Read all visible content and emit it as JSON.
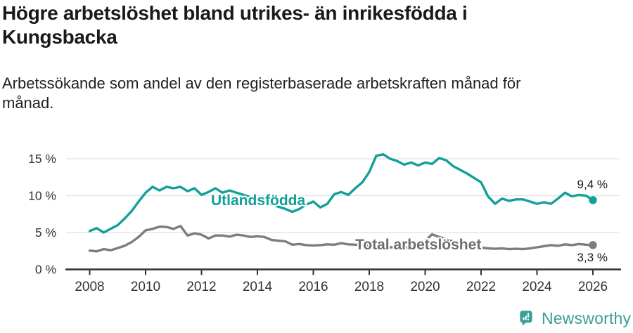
{
  "page": {
    "title": "Högre arbetslöshet bland utrikes- än inrikesfödda i Kungsbacka",
    "title_lines": [
      "Högre arbetslöshet bland utrikes- än inrikesfödda i",
      "Kungsbacka"
    ],
    "subtitle": "Arbetssökande som andel av den registerbaserade arbetskraften månad för månad.",
    "subtitle_lines": [
      "Arbetssökande som andel av den registerbaserade arbetskraften månad för",
      "månad."
    ]
  },
  "chart_data": {
    "type": "line",
    "title": "Högre arbetslöshet bland utrikes- än inrikesfödda i Kungsbacka",
    "subtitle": "Arbetssökande som andel av den registerbaserade arbetskraften månad för månad.",
    "unit": "percent",
    "grid": "horizontal",
    "x_start_year": 2008,
    "x_step_years": 0.25,
    "x_end_year": 2026,
    "xlim": [
      2007.1,
      2026.9
    ],
    "ylim": [
      0,
      16.5
    ],
    "y_ticks": [
      {
        "value": 0,
        "label": "0 %"
      },
      {
        "value": 5,
        "label": "5 %"
      },
      {
        "value": 10,
        "label": "10 %"
      },
      {
        "value": 15,
        "label": "15 %"
      }
    ],
    "x_ticks": [
      {
        "value": 2008,
        "label": "2008"
      },
      {
        "value": 2010,
        "label": "2010"
      },
      {
        "value": 2012,
        "label": "2012"
      },
      {
        "value": 2014,
        "label": "2014"
      },
      {
        "value": 2016,
        "label": "2016"
      },
      {
        "value": 2018,
        "label": "2018"
      },
      {
        "value": 2020,
        "label": "2020"
      },
      {
        "value": 2022,
        "label": "2022"
      },
      {
        "value": 2024,
        "label": "2024"
      },
      {
        "value": 2026,
        "label": "2026"
      }
    ],
    "series": [
      {
        "name": "Utlandsfödda",
        "color": "#12a098",
        "label_color": "#12a098",
        "end_value": 9.4,
        "end_label": "9,4 %",
        "values": [
          5.2,
          5.6,
          5.0,
          5.5,
          6.0,
          6.9,
          7.9,
          9.2,
          10.4,
          11.2,
          10.7,
          11.2,
          11.0,
          11.2,
          10.6,
          11.0,
          10.1,
          10.5,
          11.0,
          10.4,
          10.7,
          10.4,
          10.1,
          9.8,
          9.5,
          9.2,
          8.8,
          8.5,
          8.2,
          7.8,
          8.2,
          8.8,
          9.2,
          8.4,
          8.9,
          10.2,
          10.5,
          10.1,
          11.0,
          11.8,
          13.2,
          15.4,
          15.6,
          15.0,
          14.7,
          14.2,
          14.5,
          14.1,
          14.5,
          14.3,
          15.1,
          14.8,
          14.0,
          13.5,
          13.0,
          12.4,
          11.8,
          9.9,
          8.9,
          9.6,
          9.3,
          9.5,
          9.5,
          9.2,
          8.9,
          9.1,
          8.9,
          9.6,
          10.4,
          9.9,
          10.1,
          10.0,
          9.4
        ]
      },
      {
        "name": "Total arbetslöshet",
        "color": "#7d7d7d",
        "label_color": "#6e6e6e",
        "end_value": 3.3,
        "end_label": "3,3 %",
        "values": [
          2.55,
          2.45,
          2.75,
          2.6,
          2.9,
          3.2,
          3.7,
          4.4,
          5.3,
          5.5,
          5.8,
          5.75,
          5.5,
          5.9,
          4.6,
          4.9,
          4.7,
          4.2,
          4.6,
          4.6,
          4.45,
          4.7,
          4.6,
          4.4,
          4.5,
          4.4,
          4.0,
          3.9,
          3.8,
          3.35,
          3.45,
          3.3,
          3.25,
          3.3,
          3.4,
          3.35,
          3.55,
          3.4,
          3.35,
          3.3,
          3.2,
          3.1,
          3.05,
          3.0,
          3.0,
          2.95,
          3.05,
          3.2,
          3.9,
          4.75,
          4.4,
          4.1,
          3.8,
          3.55,
          3.3,
          3.1,
          2.95,
          2.85,
          2.8,
          2.85,
          2.75,
          2.8,
          2.75,
          2.85,
          3.0,
          3.15,
          3.3,
          3.2,
          3.4,
          3.3,
          3.45,
          3.35,
          3.3
        ]
      }
    ]
  },
  "footer": {
    "brand": "Newsworthy",
    "brand_color": "#3b9e96"
  }
}
